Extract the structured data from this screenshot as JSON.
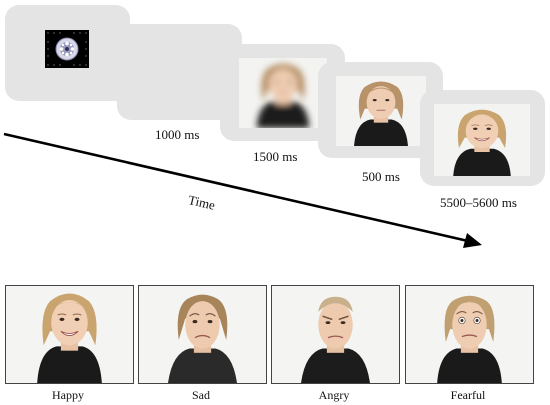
{
  "trial_sequence": {
    "durations": [
      "1000 ms",
      "1500 ms",
      "500 ms",
      "5500–5600 ms"
    ],
    "axis_label": "Time",
    "fixation_icon": "fixation-mandala-icon"
  },
  "emotions": [
    {
      "label": "Happy"
    },
    {
      "label": "Sad"
    },
    {
      "label": "Angry"
    },
    {
      "label": "Fearful"
    }
  ],
  "colors": {
    "screen_bg": "#e4e4e4",
    "photo_bg": "#f3f3f1",
    "arrow": "#000000",
    "fixation_bg": "#000000"
  }
}
